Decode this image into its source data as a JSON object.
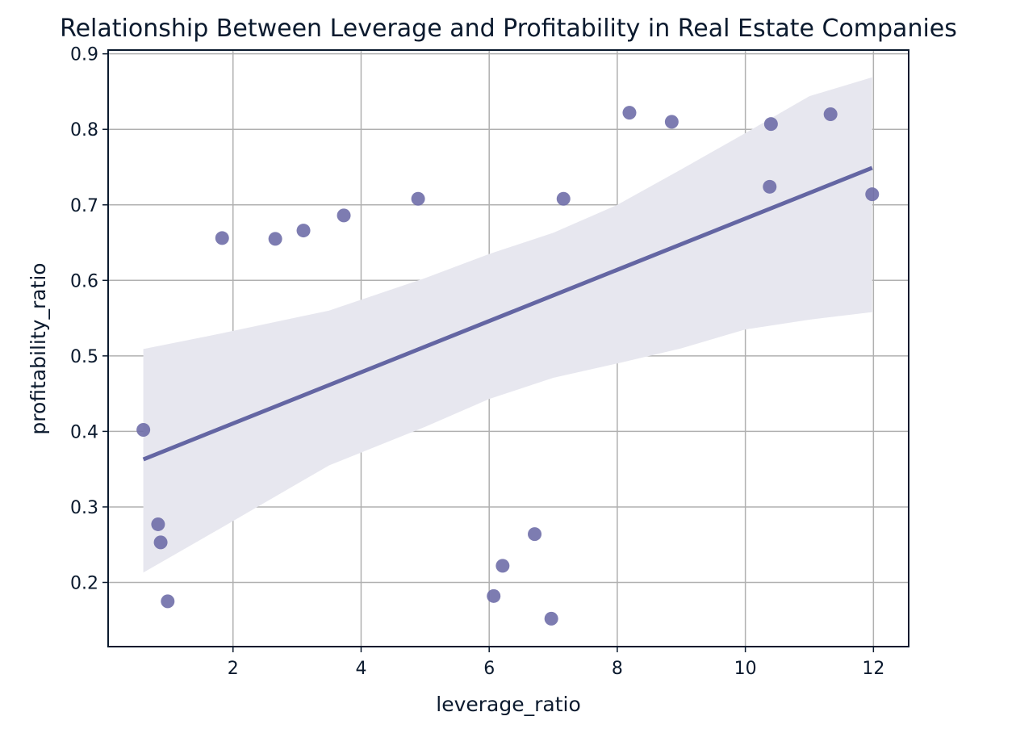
{
  "chart_data": {
    "type": "scatter",
    "title": "Relationship Between Leverage and Profitability in Real Estate Companies",
    "xlabel": "leverage_ratio",
    "ylabel": "profitability_ratio",
    "xlim": [
      0.05,
      12.55
    ],
    "ylim": [
      0.115,
      0.905
    ],
    "xticks": [
      2,
      4,
      6,
      8,
      10,
      12
    ],
    "yticks": [
      0.2,
      0.3,
      0.4,
      0.5,
      0.6,
      0.7,
      0.8,
      0.9
    ],
    "grid": true,
    "points": [
      {
        "x": 0.6,
        "y": 0.402
      },
      {
        "x": 0.83,
        "y": 0.277
      },
      {
        "x": 0.87,
        "y": 0.253
      },
      {
        "x": 0.98,
        "y": 0.175
      },
      {
        "x": 1.83,
        "y": 0.656
      },
      {
        "x": 2.66,
        "y": 0.655
      },
      {
        "x": 3.1,
        "y": 0.666
      },
      {
        "x": 3.73,
        "y": 0.686
      },
      {
        "x": 4.89,
        "y": 0.708
      },
      {
        "x": 6.07,
        "y": 0.182
      },
      {
        "x": 6.21,
        "y": 0.222
      },
      {
        "x": 6.71,
        "y": 0.264
      },
      {
        "x": 6.97,
        "y": 0.152
      },
      {
        "x": 7.16,
        "y": 0.708
      },
      {
        "x": 8.19,
        "y": 0.822
      },
      {
        "x": 8.85,
        "y": 0.81
      },
      {
        "x": 10.38,
        "y": 0.724
      },
      {
        "x": 10.4,
        "y": 0.807
      },
      {
        "x": 11.33,
        "y": 0.82
      },
      {
        "x": 11.98,
        "y": 0.714
      }
    ],
    "regression_line": {
      "x": [
        0.6,
        11.98
      ],
      "y": [
        0.363,
        0.749
      ]
    },
    "confidence_band": {
      "x": [
        0.6,
        1.83,
        3.5,
        5.0,
        6.0,
        7.0,
        8.0,
        9.0,
        10.0,
        11.0,
        11.98
      ],
      "upper": [
        0.509,
        0.53,
        0.56,
        0.603,
        0.635,
        0.663,
        0.7,
        0.747,
        0.795,
        0.844,
        0.869
      ],
      "lower": [
        0.213,
        0.273,
        0.355,
        0.406,
        0.443,
        0.471,
        0.49,
        0.51,
        0.535,
        0.548,
        0.558
      ]
    },
    "colors": {
      "points": "#6b6aa6",
      "line": "#6466a3",
      "band": "#e7e7ef",
      "grid": "#b0b0b0",
      "axes": "#0b1a2e",
      "text": "#0b1a2e"
    }
  }
}
